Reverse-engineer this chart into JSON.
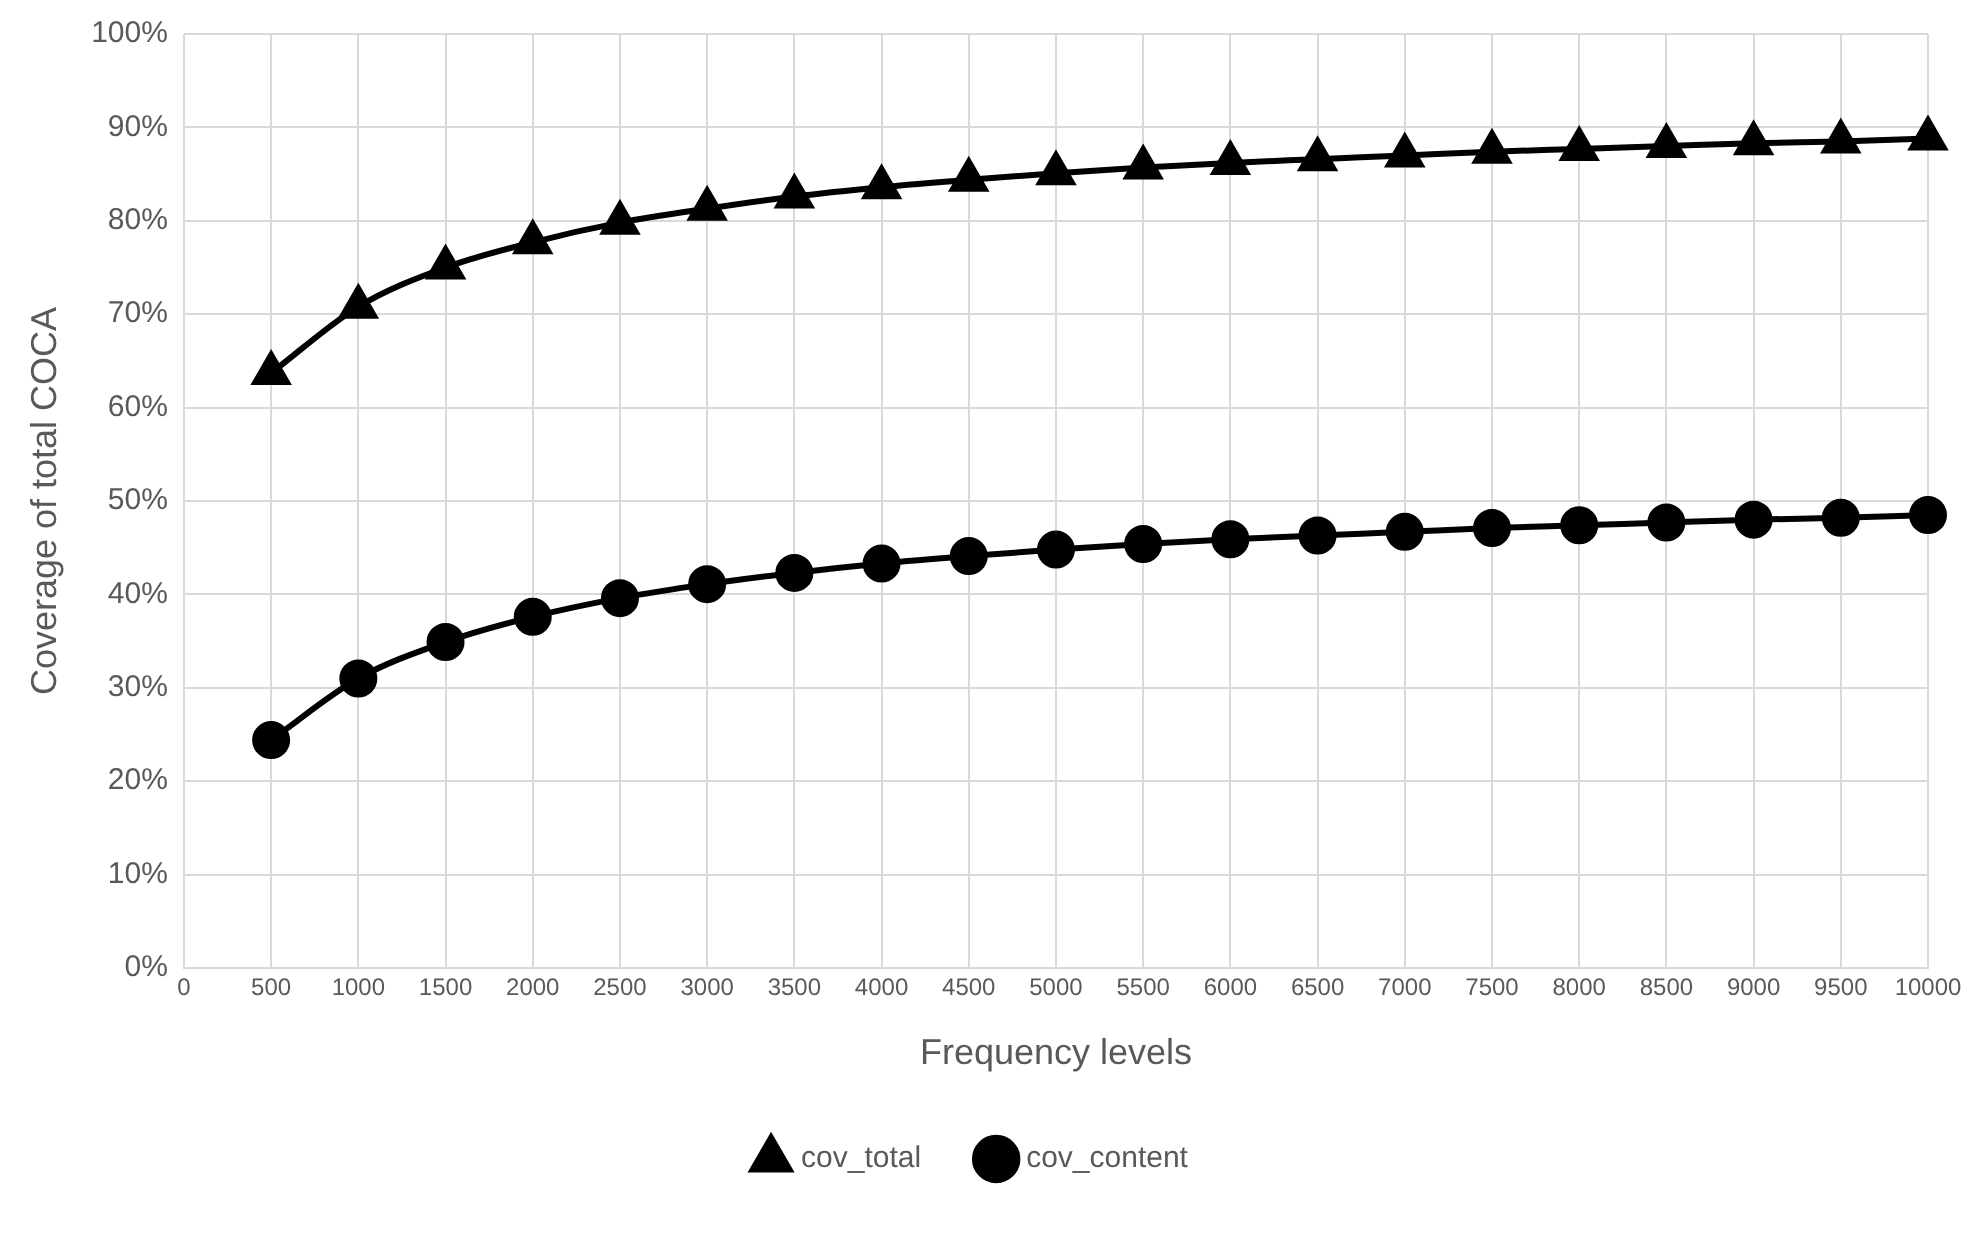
{
  "chart_data": {
    "type": "line",
    "xlabel": "Frequency levels",
    "ylabel": "Coverage of total COCA",
    "x": [
      500,
      1000,
      1500,
      2000,
      2500,
      3000,
      3500,
      4000,
      4500,
      5000,
      5500,
      6000,
      6500,
      7000,
      7500,
      8000,
      8500,
      9000,
      9500,
      10000
    ],
    "series": [
      {
        "name": "cov_total",
        "color": "#000000",
        "marker": "triangle",
        "values": [
          63.7,
          70.8,
          75.0,
          77.7,
          79.8,
          81.3,
          82.6,
          83.6,
          84.4,
          85.1,
          85.7,
          86.2,
          86.6,
          87.0,
          87.4,
          87.7,
          88.0,
          88.3,
          88.5,
          88.8
        ]
      },
      {
        "name": "cov_content",
        "color": "#000000",
        "marker": "circle",
        "values": [
          24.4,
          31.0,
          34.9,
          37.6,
          39.6,
          41.1,
          42.3,
          43.3,
          44.1,
          44.8,
          45.4,
          45.9,
          46.3,
          46.7,
          47.1,
          47.4,
          47.7,
          48.0,
          48.2,
          48.5
        ]
      }
    ],
    "xlim": [
      0,
      10000
    ],
    "xticks": [
      0,
      500,
      1000,
      1500,
      2000,
      2500,
      3000,
      3500,
      4000,
      4500,
      5000,
      5500,
      6000,
      6500,
      7000,
      7500,
      8000,
      8500,
      9000,
      9500,
      10000
    ],
    "ylim": [
      0,
      100
    ],
    "yticks": [
      {
        "value": 0,
        "label": "0%"
      },
      {
        "value": 10,
        "label": "10%"
      },
      {
        "value": 20,
        "label": "20%"
      },
      {
        "value": 30,
        "label": "30%"
      },
      {
        "value": 40,
        "label": "40%"
      },
      {
        "value": 50,
        "label": "50%"
      },
      {
        "value": 60,
        "label": "60%"
      },
      {
        "value": 70,
        "label": "70%"
      },
      {
        "value": 80,
        "label": "80%"
      },
      {
        "value": 90,
        "label": "90%"
      },
      {
        "value": 100,
        "label": "100%"
      }
    ],
    "grid": true,
    "legend": "bottom",
    "line_style": "solid"
  }
}
